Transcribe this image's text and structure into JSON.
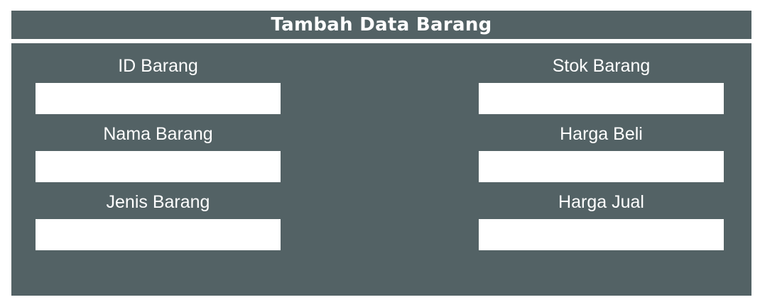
{
  "form": {
    "title": "Tambah Data Barang",
    "fields": {
      "id_barang": {
        "label": "ID Barang",
        "value": ""
      },
      "nama_barang": {
        "label": "Nama Barang",
        "value": ""
      },
      "jenis_barang": {
        "label": "Jenis Barang",
        "value": ""
      },
      "stok_barang": {
        "label": "Stok Barang",
        "value": ""
      },
      "harga_beli": {
        "label": "Harga Beli",
        "value": ""
      },
      "harga_jual": {
        "label": "Harga Jual",
        "value": ""
      }
    }
  },
  "colors": {
    "panel_background": "#536265",
    "text": "#ffffff",
    "input_background": "#ffffff"
  }
}
